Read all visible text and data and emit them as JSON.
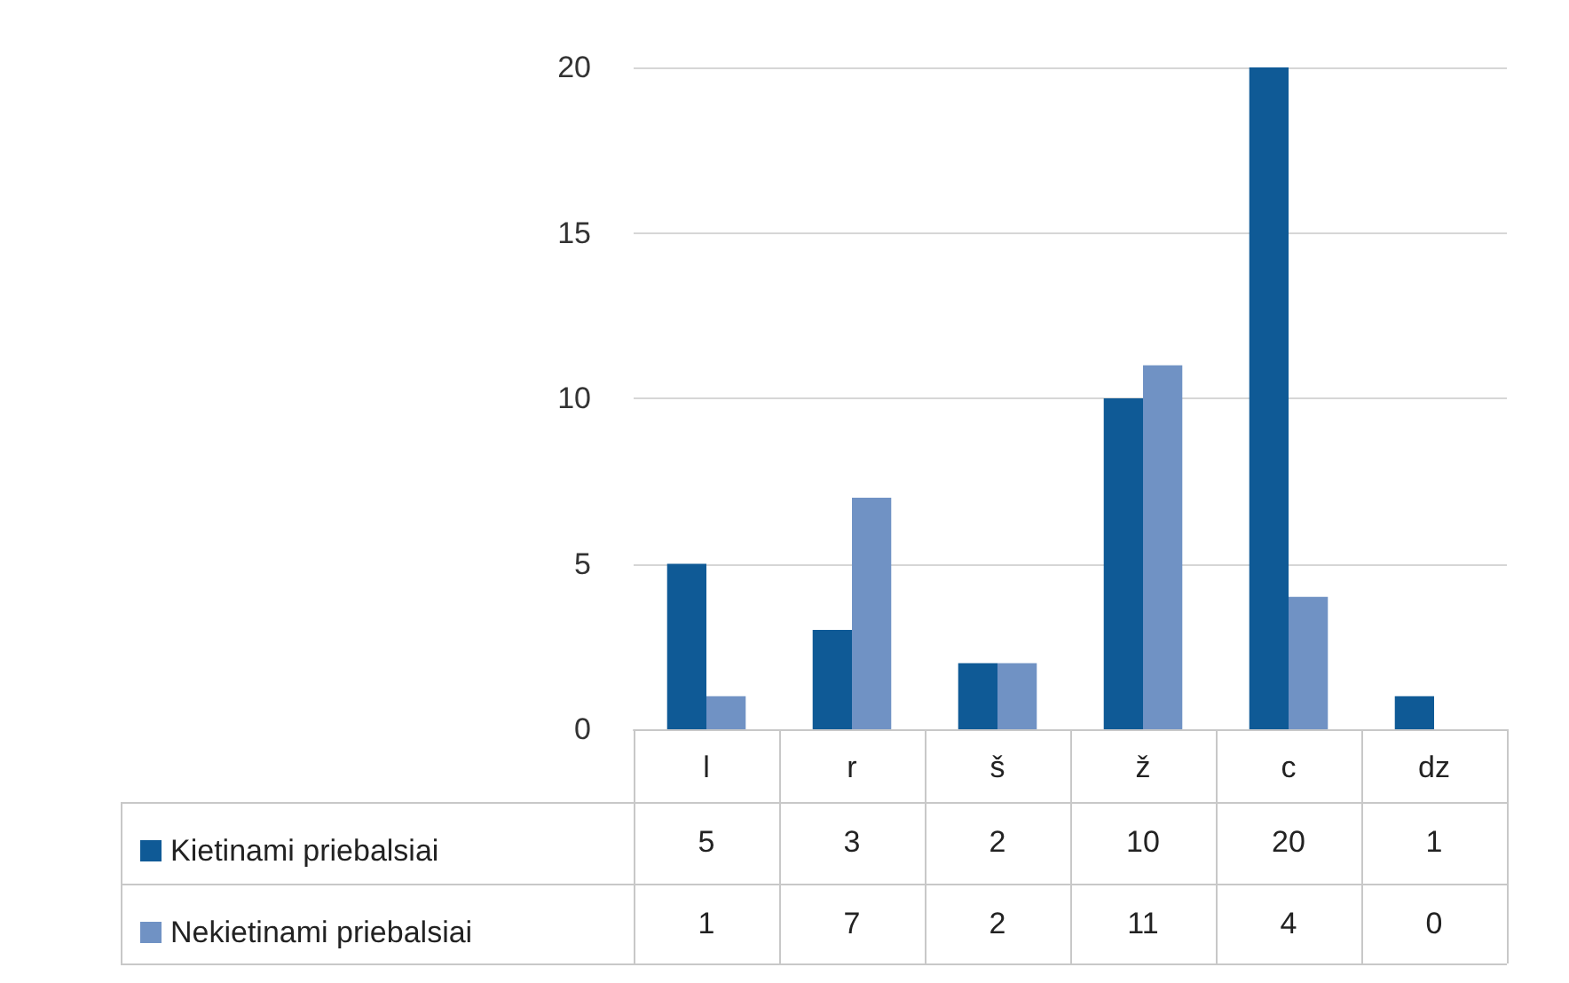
{
  "chart_data": {
    "type": "bar",
    "categories": [
      "l",
      "r",
      "š",
      "ž",
      "c",
      "dz"
    ],
    "series": [
      {
        "name": "Kietinami priebalsiai",
        "color": "#0f5a96",
        "values": [
          5,
          3,
          2,
          10,
          20,
          1
        ]
      },
      {
        "name": "Nekietinami priebalsiai",
        "color": "#7092c4",
        "values": [
          1,
          7,
          2,
          11,
          4,
          0
        ]
      }
    ],
    "ylim": [
      0,
      20
    ],
    "yticks": [
      0,
      5,
      10,
      15,
      20
    ],
    "grid": "y",
    "legend": "bottom",
    "data_labels": true
  }
}
